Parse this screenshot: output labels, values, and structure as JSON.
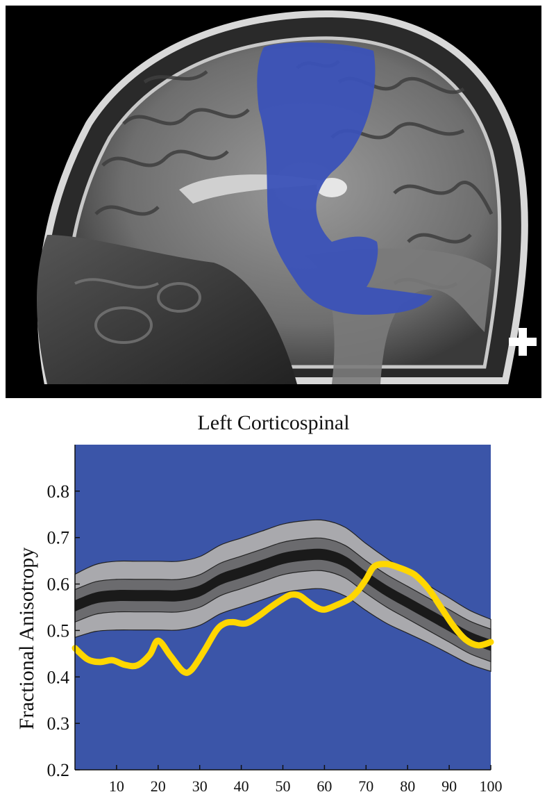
{
  "image": {
    "description_icon": "mri-sagittal-brain-icon",
    "tract_color": "#3b52b8",
    "marker_icon": "plus-icon"
  },
  "chart_data": {
    "type": "line",
    "title": "Left Corticospinal",
    "xlabel": "",
    "ylabel": "Fractional Anisotropy",
    "xlim": [
      0,
      100
    ],
    "ylim": [
      0.2,
      0.9
    ],
    "xticks": [
      "10",
      "20",
      "30",
      "40",
      "50",
      "60",
      "70",
      "80",
      "90",
      "100"
    ],
    "yticks": [
      "0.2",
      "0.3",
      "0.4",
      "0.5",
      "0.6",
      "0.7",
      "0.8"
    ],
    "background_color": "#3b55a8",
    "grid": false,
    "x": [
      0,
      5,
      10,
      15,
      20,
      25,
      30,
      35,
      40,
      45,
      50,
      55,
      60,
      65,
      70,
      75,
      80,
      85,
      90,
      95,
      100
    ],
    "reference_mean": [
      0.553,
      0.57,
      0.575,
      0.575,
      0.575,
      0.575,
      0.585,
      0.61,
      0.625,
      0.64,
      0.655,
      0.662,
      0.663,
      0.648,
      0.615,
      0.585,
      0.56,
      0.535,
      0.51,
      0.485,
      0.468
    ],
    "reference_band_inner": [
      0.035,
      0.035,
      0.035,
      0.035,
      0.035,
      0.035,
      0.035,
      0.035,
      0.035,
      0.035,
      0.035,
      0.035,
      0.035,
      0.035,
      0.035,
      0.035,
      0.035,
      0.035,
      0.035,
      0.035,
      0.035
    ],
    "reference_band_outer": [
      0.068,
      0.072,
      0.074,
      0.074,
      0.074,
      0.074,
      0.074,
      0.074,
      0.074,
      0.074,
      0.074,
      0.074,
      0.074,
      0.074,
      0.072,
      0.07,
      0.066,
      0.062,
      0.06,
      0.058,
      0.056
    ],
    "series": [
      {
        "color": "#ffd700",
        "x": [
          0,
          3,
          6,
          9,
          12,
          15,
          18,
          20,
          23,
          26,
          28,
          31,
          34,
          36,
          38,
          41,
          44,
          47,
          50,
          52,
          54,
          56,
          58,
          60,
          63,
          66,
          68,
          70,
          72,
          75,
          78,
          80,
          82,
          85,
          88,
          91,
          94,
          97,
          100
        ],
        "values": [
          0.462,
          0.438,
          0.432,
          0.436,
          0.426,
          0.425,
          0.448,
          0.478,
          0.445,
          0.412,
          0.415,
          0.455,
          0.5,
          0.515,
          0.518,
          0.515,
          0.53,
          0.55,
          0.568,
          0.577,
          0.575,
          0.562,
          0.55,
          0.545,
          0.555,
          0.568,
          0.585,
          0.61,
          0.638,
          0.643,
          0.635,
          0.628,
          0.618,
          0.59,
          0.55,
          0.51,
          0.48,
          0.468,
          0.475
        ]
      }
    ]
  }
}
